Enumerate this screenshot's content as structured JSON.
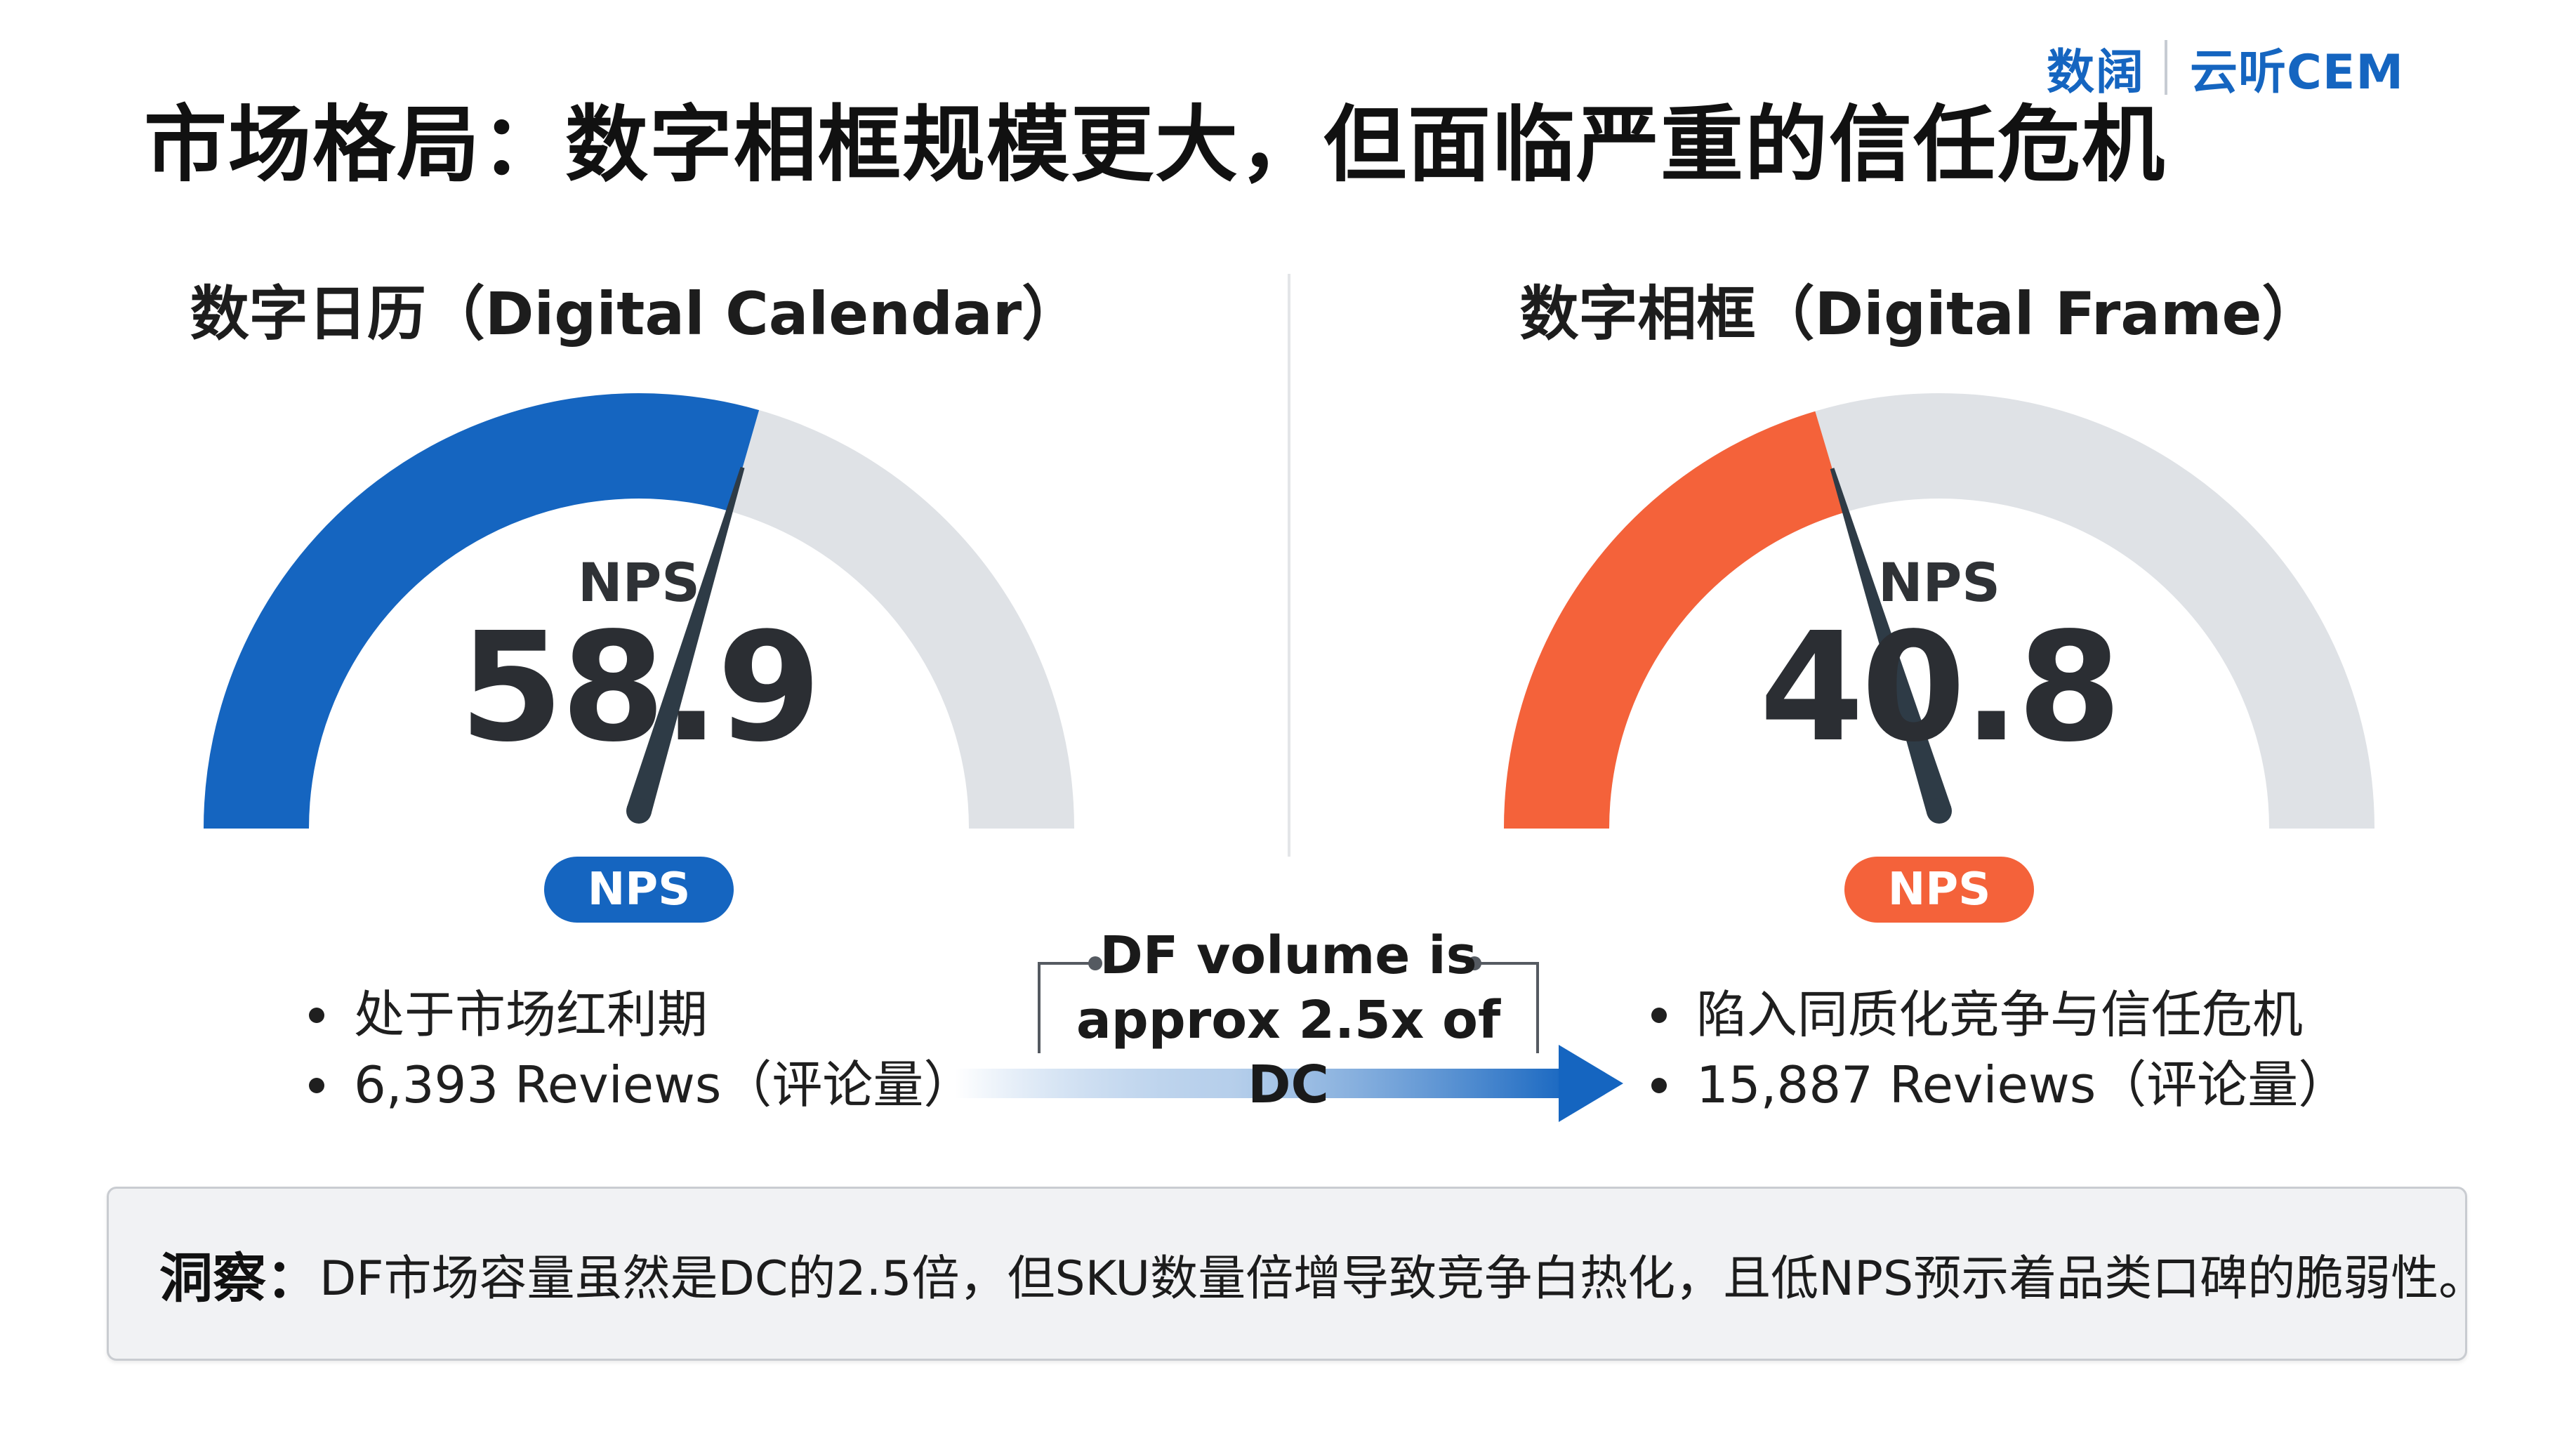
{
  "title": "市场格局：数字相框规模更大，但面临严重的信任危机",
  "logo": {
    "brand": "数阔",
    "product": "云听CEM"
  },
  "colors": {
    "dc_accent": "#1565c0",
    "df_accent": "#f4623a",
    "track": "#dfe2e6",
    "needle": "#2e3b46"
  },
  "chart_data": [
    {
      "type": "gauge",
      "title": "数字日历（Digital Calendar）",
      "label": "NPS",
      "value": 58.9,
      "value_text": "58.9",
      "range": [
        0,
        100
      ],
      "badge": "NPS",
      "bullets": [
        "处于市场红利期",
        "6,393 Reviews（评论量）"
      ],
      "reviews": 6393
    },
    {
      "type": "gauge",
      "title": "数字相框（Digital Frame）",
      "label": "NPS",
      "value": 40.8,
      "value_text": "40.8",
      "range": [
        0,
        100
      ],
      "badge": "NPS",
      "bullets": [
        "陷入同质化竞争与信任危机",
        "15,887 Reviews（评论量）"
      ],
      "reviews": 15887
    }
  ],
  "comparison": {
    "line1": "DF volume is",
    "line2": "approx 2.5x of DC",
    "ratio": 2.5
  },
  "insight": {
    "label": "洞察：",
    "text": "DF市场容量虽然是DC的2.5倍，但SKU数量倍增导致竞争白热化，且低NPS预示着品类口碑的脆弱性。"
  }
}
